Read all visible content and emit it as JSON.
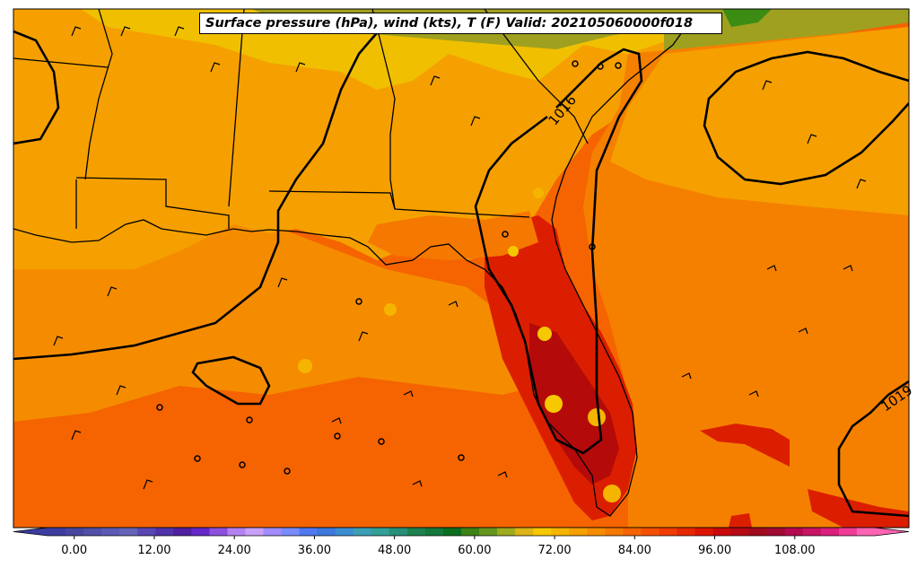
{
  "title": "Surface pressure (hPa), wind (kts), T (F) Valid: 202105060000f018",
  "isobars": [
    {
      "label": "1016"
    },
    {
      "label": "1019"
    }
  ],
  "colorbar": {
    "tick_labels": [
      "0.00",
      "12.00",
      "24.00",
      "36.00",
      "48.00",
      "60.00",
      "72.00",
      "84.00",
      "96.00",
      "108.00"
    ],
    "tick_values": [
      0,
      12,
      24,
      36,
      48,
      60,
      72,
      84,
      96,
      108
    ],
    "min": -4,
    "max": 120,
    "step": 3,
    "colors": [
      "#3c3ca0",
      "#46469e",
      "#5050a8",
      "#5a5ab4",
      "#6464b8",
      "#5a46b4",
      "#5032aa",
      "#501ea0",
      "#6428c8",
      "#8c50dc",
      "#b482f0",
      "#c8a0f8",
      "#a08cff",
      "#788cff",
      "#5078f0",
      "#3c78dc",
      "#3c8cd2",
      "#3ca0b4",
      "#32a096",
      "#289078",
      "#1e8250",
      "#14783c",
      "#0a6e1e",
      "#3c8214",
      "#64961e",
      "#a0aa1e",
      "#dcb414",
      "#f5c800",
      "#f5b400",
      "#f5a000",
      "#f58c00",
      "#f57800",
      "#f56400",
      "#f55000",
      "#f03c00",
      "#e62800",
      "#dc1400",
      "#c80a0a",
      "#b40a14",
      "#a00a1e",
      "#a00a32",
      "#b40a50",
      "#c81464",
      "#dc1e7d",
      "#f03c96",
      "#ff64b4"
    ]
  },
  "colors": {
    "land_warm": "#f5a000",
    "land_cool": "#f0c000",
    "north_olive": "#a0a020",
    "green_patch": "#3c8c14",
    "gulf": "#f56400",
    "gulf_north": "#f58c00",
    "atlantic": "#f57800",
    "florida_hot": "#dc1e00",
    "florida_core": "#b40a0a",
    "cuba": "#dc1e00"
  }
}
